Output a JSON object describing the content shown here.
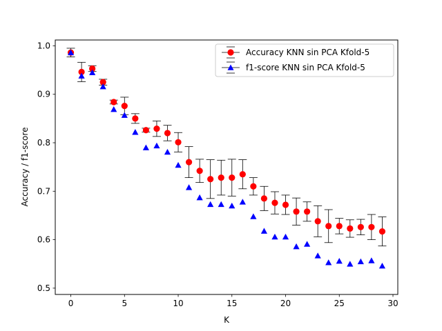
{
  "chart_data": {
    "type": "scatter",
    "xlabel": "K",
    "ylabel": "Accuracy / f1-score",
    "xlim": [
      -1.45,
      30.45
    ],
    "ylim": [
      0.487,
      1.012
    ],
    "xticks": [
      0,
      5,
      10,
      15,
      20,
      25,
      30
    ],
    "yticks": [
      0.5,
      0.6,
      0.7,
      0.8,
      0.9,
      1.0
    ],
    "ytick_labels": [
      "0.5",
      "0.6",
      "0.7",
      "0.8",
      "0.9",
      "1.0"
    ],
    "grid": false,
    "legend_position": "top-right",
    "x": [
      0,
      1,
      2,
      3,
      4,
      5,
      6,
      7,
      8,
      9,
      10,
      11,
      12,
      13,
      14,
      15,
      16,
      17,
      18,
      19,
      20,
      21,
      22,
      23,
      24,
      25,
      26,
      27,
      28,
      29
    ],
    "series": [
      {
        "name": "Accuracy KNN sin PCA Kfold-5",
        "marker": "circle",
        "color": "#ff0000",
        "values": [
          0.986,
          0.946,
          0.953,
          0.925,
          0.884,
          0.876,
          0.85,
          0.826,
          0.829,
          0.82,
          0.801,
          0.76,
          0.742,
          0.725,
          0.728,
          0.728,
          0.735,
          0.71,
          0.685,
          0.676,
          0.672,
          0.658,
          0.658,
          0.638,
          0.628,
          0.628,
          0.623,
          0.626,
          0.626,
          0.617
        ],
        "errors": [
          0.009,
          0.02,
          0.006,
          0.006,
          0.004,
          0.018,
          0.01,
          0.004,
          0.016,
          0.016,
          0.02,
          0.032,
          0.024,
          0.04,
          0.036,
          0.038,
          0.03,
          0.018,
          0.025,
          0.023,
          0.02,
          0.028,
          0.02,
          0.032,
          0.034,
          0.016,
          0.018,
          0.016,
          0.026,
          0.03
        ]
      },
      {
        "name": "f1-score KNN sin PCA Kfold-5",
        "marker": "triangle",
        "color": "#0000ff",
        "values": [
          0.985,
          0.937,
          0.944,
          0.915,
          0.868,
          0.856,
          0.821,
          0.789,
          0.793,
          0.78,
          0.753,
          0.707,
          0.686,
          0.672,
          0.672,
          0.669,
          0.677,
          0.647,
          0.617,
          0.605,
          0.605,
          0.585,
          0.59,
          0.566,
          0.552,
          0.555,
          0.549,
          0.554,
          0.556,
          0.545
        ]
      }
    ]
  }
}
